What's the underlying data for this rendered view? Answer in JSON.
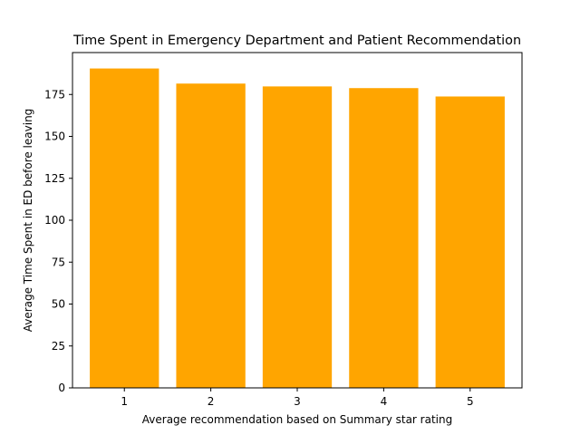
{
  "chart_data": {
    "type": "bar",
    "title": "Time Spent in Emergency Department and Patient Recommendation",
    "xlabel": "Average recommendation based on Summary star rating",
    "ylabel": "Average Time Spent in ED before leaving",
    "categories": [
      "1",
      "2",
      "3",
      "4",
      "5"
    ],
    "values": [
      190.5,
      181.5,
      179.8,
      178.8,
      173.8
    ],
    "ylim": [
      0,
      200
    ],
    "yticks": [
      "0",
      "25",
      "50",
      "75",
      "100",
      "125",
      "150",
      "175"
    ],
    "grid": false,
    "legend": "none",
    "bar_color": "#ffa500"
  }
}
